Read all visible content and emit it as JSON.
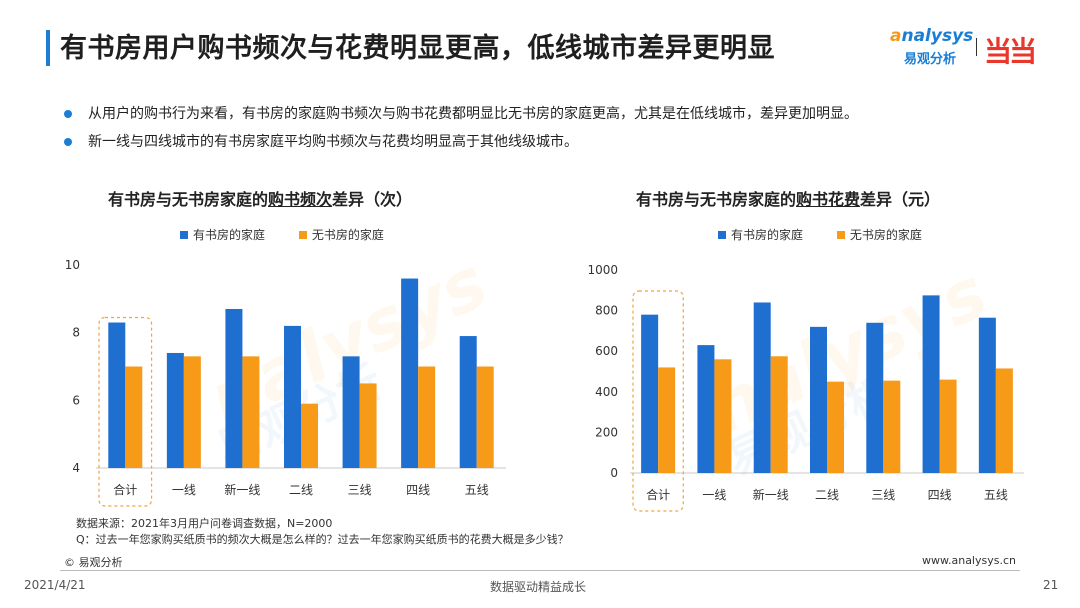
{
  "title": "有书房用户购书频次与花费明显更高，低线城市差异更明显",
  "logo": {
    "brand_prefix": "a",
    "brand_rest": "nalysys",
    "brand_cn": "易观分析",
    "partner": "当当"
  },
  "bullets": [
    "从用户的购书行为来看，有书房的家庭购书频次与购书花费都明显比无书房的家庭更高，尤其是在低线城市，差异更加明显。",
    "新一线与四线城市的有书房家庭平均购书频次与花费均明显高于其他线级城市。"
  ],
  "chart_data": [
    {
      "type": "bar",
      "title": "有书房与无书房家庭的购书频次差异（次）",
      "title_parts": {
        "pre": "有书房与无书房家庭的",
        "underlined": "购书频次",
        "post": "差异（次）"
      },
      "categories": [
        "合计",
        "一线",
        "新一线",
        "二线",
        "三线",
        "四线",
        "五线"
      ],
      "series": [
        {
          "name": "有书房的家庭",
          "values": [
            8.3,
            7.4,
            8.7,
            8.2,
            7.3,
            9.6,
            7.9
          ]
        },
        {
          "name": "无书房的家庭",
          "values": [
            7.0,
            7.3,
            7.3,
            5.9,
            6.5,
            7.0,
            7.0
          ]
        }
      ],
      "ylim": [
        4,
        10
      ],
      "yticks": [
        4,
        6,
        8,
        10
      ],
      "highlight_category": "合计",
      "grid": false,
      "legend": "top"
    },
    {
      "type": "bar",
      "title": "有书房与无书房家庭的购书花费差异（元）",
      "title_parts": {
        "pre": "有书房与无书房家庭的",
        "underlined": "购书花费",
        "post": "差异（元）"
      },
      "categories": [
        "合计",
        "一线",
        "新一线",
        "二线",
        "三线",
        "四线",
        "五线"
      ],
      "series": [
        {
          "name": "有书房的家庭",
          "values": [
            780,
            630,
            840,
            720,
            740,
            875,
            765
          ]
        },
        {
          "name": "无书房的家庭",
          "values": [
            520,
            560,
            575,
            450,
            455,
            460,
            515
          ]
        }
      ],
      "ylim": [
        0,
        1000
      ],
      "yticks": [
        0,
        200,
        400,
        600,
        800,
        1000
      ],
      "highlight_category": "合计",
      "grid": false,
      "legend": "top"
    }
  ],
  "colors": {
    "series1": "#1f6fd1",
    "series2": "#f79a18",
    "accent": "#1a7fd4",
    "highlight": "#f0a33a"
  },
  "source": {
    "line1": "数据来源：2021年3月用户问卷调查数据，N=2000",
    "line2": "Q：过去一年您家购买纸质书的频次大概是怎么样的？过去一年您家购买纸质书的花费大概是多少钱？"
  },
  "copyright": "© 易观分析",
  "website": "www.analysys.cn",
  "footer": {
    "date": "2021/4/21",
    "slogan": "数据驱动精益成长",
    "page": "21"
  }
}
